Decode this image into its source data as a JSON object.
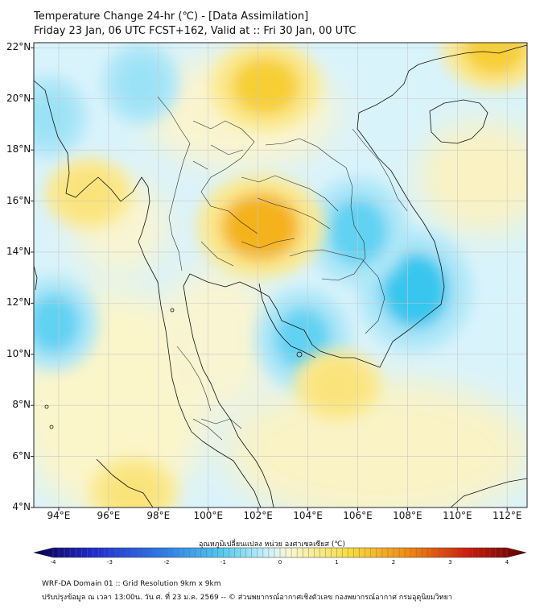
{
  "header": {
    "title": "Temperature Change 24-hr (℃) - [Data Assimilation]",
    "subtitle": "Friday 23 Jan, 06 UTC FCST+162, Valid at :: Fri 30 Jan, 00 UTC"
  },
  "map": {
    "lat_labels": [
      "22°N",
      "20°N",
      "18°N",
      "16°N",
      "14°N",
      "12°N",
      "10°N",
      "8°N",
      "6°N",
      "4°N"
    ],
    "lon_labels": [
      "94°E",
      "96°E",
      "98°E",
      "100°E",
      "102°E",
      "104°E",
      "106°E",
      "108°E",
      "110°E",
      "112°E"
    ],
    "lat_range": [
      4,
      22.2
    ],
    "lon_range": [
      93,
      112.8
    ],
    "field": "24-hr temperature change",
    "warm_spots": [
      {
        "name": "central-northeast-thailand",
        "lon": 102.1,
        "lat": 15.0,
        "value": 1.6
      },
      {
        "name": "northern-laos",
        "lon": 102.3,
        "lat": 20.5,
        "value": 1.3
      },
      {
        "name": "gulf-of-tonkin-ne",
        "lon": 111.5,
        "lat": 22.0,
        "value": 1.2
      },
      {
        "name": "south-vietnam-coast",
        "lon": 105.2,
        "lat": 8.8,
        "value": 0.9
      },
      {
        "name": "west-malaysia-sea",
        "lon": 97.0,
        "lat": 4.6,
        "value": 0.9
      },
      {
        "name": "myanmar-coast",
        "lon": 95.2,
        "lat": 16.3,
        "value": 0.9
      }
    ],
    "cool_spots": [
      {
        "name": "south-china-sea-vietnam",
        "lon": 108.3,
        "lat": 12.5,
        "value": -1.2
      },
      {
        "name": "cambodia-east",
        "lon": 106.0,
        "lat": 14.8,
        "value": -1.0
      },
      {
        "name": "gulf-of-thailand",
        "lon": 103.8,
        "lat": 10.6,
        "value": -0.9
      },
      {
        "name": "andaman-sea-west",
        "lon": 93.8,
        "lat": 11.2,
        "value": -0.8
      },
      {
        "name": "myanmar-north",
        "lon": 97.3,
        "lat": 20.6,
        "value": -0.6
      },
      {
        "name": "bay-of-bengal",
        "lon": 93.6,
        "lat": 19.3,
        "value": -0.6
      }
    ]
  },
  "colorbar": {
    "title": "อุณหภูมิเปลี่ยนแปลง หน่วย องศาเซลเซียส (℃)",
    "min": -4,
    "max": 4,
    "ticks": [
      "-4",
      "-3",
      "-2",
      "-1",
      "0",
      "1",
      "2",
      "3",
      "4"
    ],
    "colors": [
      "#08004a",
      "#1f2bd0",
      "#2f80e8",
      "#4fc9f0",
      "#d0f3fa",
      "#fbf6cf",
      "#f7dd40",
      "#f28a12",
      "#cf1d0c",
      "#5a0000"
    ]
  },
  "footer": {
    "line1": "WRF-DA Domain 01 :: Grid Resolution 9km x 9km",
    "line2": "ปรับปรุงข้อมูล ณ เวลา 13:00น. วัน ศ. ที่ 23 ม.ค. 2569 -- © ส่วนพยากรณ์อากาศเชิงตัวเลข กองพยากรณ์อากาศ กรมอุตุนิยมวิทยา"
  }
}
